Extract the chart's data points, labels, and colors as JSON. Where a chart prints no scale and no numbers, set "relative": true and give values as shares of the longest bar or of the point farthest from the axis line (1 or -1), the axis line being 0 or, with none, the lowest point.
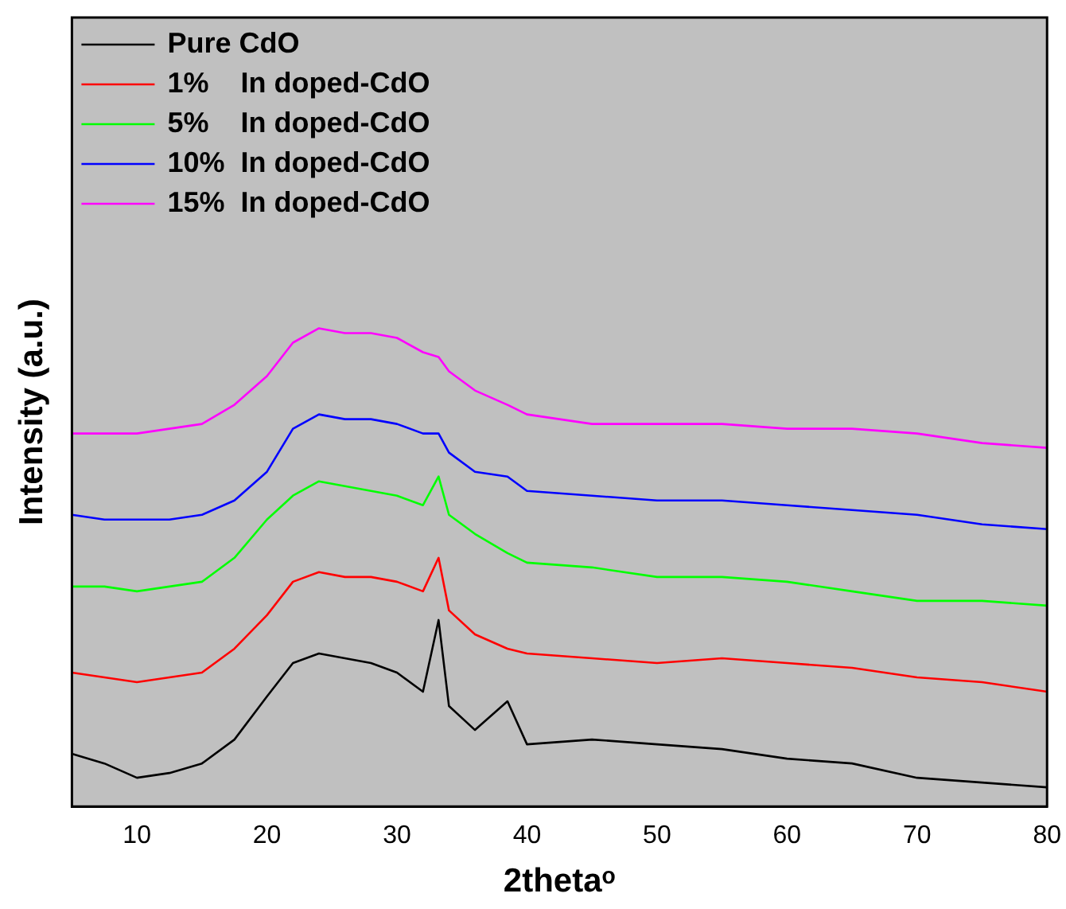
{
  "chart_data": {
    "type": "line",
    "relative": true,
    "xlabel": "2thetaᵒ",
    "ylabel": "Intensity (a.u.)",
    "x": [
      5,
      7.5,
      10,
      12.5,
      15,
      17.5,
      20,
      22,
      24,
      26,
      28,
      30,
      32,
      33.2,
      34,
      36,
      38.5,
      40,
      45,
      50,
      55,
      60,
      65,
      70,
      75,
      80
    ],
    "xlim": [
      5,
      80
    ],
    "xticks": [
      10,
      20,
      30,
      40,
      50,
      60,
      70,
      80
    ],
    "legend": "top left",
    "grid": false,
    "marker": "none",
    "series": [
      {
        "name": "Pure CdO",
        "color": "#000000",
        "values": [
          0.11,
          0.09,
          0.06,
          0.07,
          0.09,
          0.14,
          0.23,
          0.3,
          0.32,
          0.31,
          0.3,
          0.28,
          0.24,
          0.39,
          0.21,
          0.16,
          0.22,
          0.13,
          0.14,
          0.13,
          0.12,
          0.1,
          0.09,
          0.06,
          0.05,
          0.04
        ]
      },
      {
        "name": "1%    In doped-CdO",
        "color": "#ff0000",
        "values": [
          0.28,
          0.27,
          0.26,
          0.27,
          0.28,
          0.33,
          0.4,
          0.47,
          0.49,
          0.48,
          0.48,
          0.47,
          0.45,
          0.52,
          0.41,
          0.36,
          0.33,
          0.32,
          0.31,
          0.3,
          0.31,
          0.3,
          0.29,
          0.27,
          0.26,
          0.24
        ]
      },
      {
        "name": "5%    In doped-CdO",
        "color": "#00ff00",
        "values": [
          0.46,
          0.46,
          0.45,
          0.46,
          0.47,
          0.52,
          0.6,
          0.65,
          0.68,
          0.67,
          0.66,
          0.65,
          0.63,
          0.69,
          0.61,
          0.57,
          0.53,
          0.51,
          0.5,
          0.48,
          0.48,
          0.47,
          0.45,
          0.43,
          0.43,
          0.42
        ]
      },
      {
        "name": "10%  In doped-CdO",
        "color": "#0000ff",
        "values": [
          0.61,
          0.6,
          0.6,
          0.6,
          0.61,
          0.64,
          0.7,
          0.79,
          0.82,
          0.81,
          0.81,
          0.8,
          0.78,
          0.78,
          0.74,
          0.7,
          0.69,
          0.66,
          0.65,
          0.64,
          0.64,
          0.63,
          0.62,
          0.61,
          0.59,
          0.58
        ]
      },
      {
        "name": "15%  In doped-CdO",
        "color": "#ff00ff",
        "values": [
          0.78,
          0.78,
          0.78,
          0.79,
          0.8,
          0.84,
          0.9,
          0.97,
          1,
          0.99,
          0.99,
          0.98,
          0.95,
          0.94,
          0.91,
          0.87,
          0.84,
          0.82,
          0.8,
          0.8,
          0.8,
          0.79,
          0.79,
          0.78,
          0.76,
          0.75
        ]
      }
    ]
  }
}
